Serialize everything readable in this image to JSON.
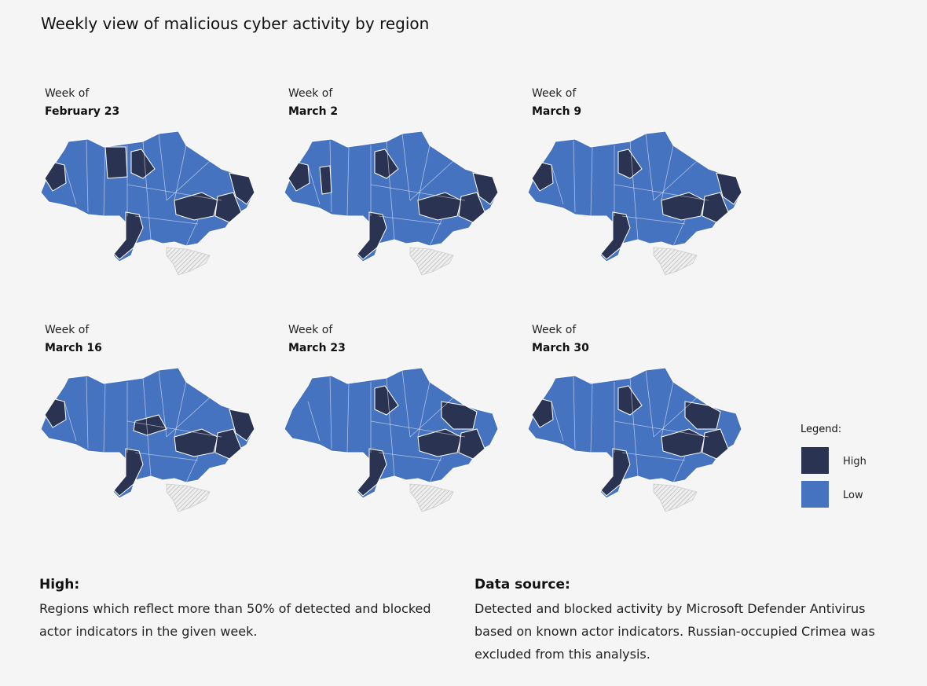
{
  "title": "Weekly view of malicious cyber activity by region",
  "panels": [
    {
      "prefix": "Week of",
      "week": "February 23"
    },
    {
      "prefix": "Week of",
      "week": "March 2"
    },
    {
      "prefix": "Week of",
      "week": "March 9"
    },
    {
      "prefix": "Week of",
      "week": "March 16"
    },
    {
      "prefix": "Week of",
      "week": "March 23"
    },
    {
      "prefix": "Week of",
      "week": "March 30"
    }
  ],
  "legend": {
    "title": "Legend:",
    "items": [
      {
        "label": "High",
        "color": "#2b3352"
      },
      {
        "label": "Low",
        "color": "#4673c0"
      }
    ]
  },
  "notes": [
    {
      "heading": "High:",
      "text": "Regions which reflect more than 50% of detected and blocked actor indicators in the given week."
    },
    {
      "heading": "Data source:",
      "text": "Detected and blocked activity by Microsoft Defender Antivirus based on known actor indicators. Russian-occupied Crimea was excluded from this analysis."
    }
  ]
}
